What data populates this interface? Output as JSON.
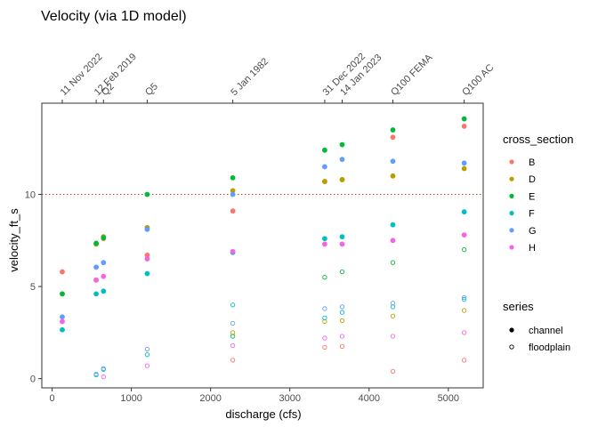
{
  "chart_data": {
    "type": "scatter",
    "title": "Velocity (via 1D model)",
    "xlabel": "discharge (cfs)",
    "ylabel": "velocity_ft_s",
    "xlim": [
      -130,
      5440
    ],
    "ylim": [
      -0.5,
      14.95
    ],
    "x_ticks": [
      0,
      1000,
      2000,
      3000,
      4000,
      5000
    ],
    "y_ticks": [
      0,
      5,
      10
    ],
    "reference_line": {
      "y": 10,
      "color": "#a0522d",
      "style": "dotted"
    },
    "top_ticks": [
      {
        "x": 128,
        "label": "11 Nov 2022"
      },
      {
        "x": 556,
        "label": "12 Feb 2019"
      },
      {
        "x": 648,
        "label": "Q2"
      },
      {
        "x": 1200,
        "label": "Q5"
      },
      {
        "x": 2280,
        "label": "5 Jan 1982"
      },
      {
        "x": 3440,
        "label": "31 Dec 2022"
      },
      {
        "x": 3660,
        "label": "14 Jan 2023"
      },
      {
        "x": 4300,
        "label": "Q100 FEMA"
      },
      {
        "x": 5200,
        "label": "Q100 AC"
      }
    ],
    "legend": {
      "cross_section": {
        "title": "cross_section",
        "items": [
          {
            "label": "B",
            "color": "#F8766D"
          },
          {
            "label": "D",
            "color": "#B79F00"
          },
          {
            "label": "E",
            "color": "#00BA38"
          },
          {
            "label": "F",
            "color": "#00BFC4"
          },
          {
            "label": "G",
            "color": "#619CFF"
          },
          {
            "label": "H",
            "color": "#F564E3"
          }
        ]
      },
      "series": {
        "title": "series",
        "items": [
          {
            "label": "channel",
            "shape": "filled"
          },
          {
            "label": "floodplain",
            "shape": "open"
          }
        ]
      }
    },
    "series": [
      {
        "cross_section": "B",
        "kind": "channel",
        "points": [
          [
            128,
            5.8
          ],
          [
            556,
            5.35
          ],
          [
            648,
            7.6
          ],
          [
            1200,
            6.7
          ],
          [
            2280,
            9.1
          ],
          [
            3440,
            10.7
          ],
          [
            3660,
            10.8
          ],
          [
            4300,
            13.1
          ],
          [
            5200,
            13.7
          ]
        ]
      },
      {
        "cross_section": "D",
        "kind": "channel",
        "points": [
          [
            128,
            4.6
          ],
          [
            556,
            7.3
          ],
          [
            648,
            7.7
          ],
          [
            1200,
            8.2
          ],
          [
            2280,
            10.2
          ],
          [
            3440,
            10.7
          ],
          [
            3660,
            10.8
          ],
          [
            4300,
            11.0
          ],
          [
            5200,
            11.4
          ]
        ]
      },
      {
        "cross_section": "E",
        "kind": "channel",
        "points": [
          [
            128,
            4.6
          ],
          [
            556,
            7.35
          ],
          [
            648,
            7.65
          ],
          [
            1200,
            10.0
          ],
          [
            2280,
            10.9
          ],
          [
            3440,
            12.4
          ],
          [
            3660,
            12.7
          ],
          [
            4300,
            13.5
          ],
          [
            5200,
            14.1
          ]
        ]
      },
      {
        "cross_section": "F",
        "kind": "channel",
        "points": [
          [
            128,
            2.65
          ],
          [
            556,
            4.6
          ],
          [
            648,
            4.75
          ],
          [
            1200,
            5.7
          ],
          [
            2280,
            6.85
          ],
          [
            3440,
            7.6
          ],
          [
            3660,
            7.7
          ],
          [
            4300,
            8.35
          ],
          [
            5200,
            9.05
          ]
        ]
      },
      {
        "cross_section": "G",
        "kind": "channel",
        "points": [
          [
            128,
            3.35
          ],
          [
            556,
            6.05
          ],
          [
            648,
            6.3
          ],
          [
            1200,
            8.1
          ],
          [
            2280,
            10.0
          ],
          [
            3440,
            11.5
          ],
          [
            3660,
            11.9
          ],
          [
            4300,
            11.8
          ],
          [
            5200,
            11.7
          ]
        ]
      },
      {
        "cross_section": "H",
        "kind": "channel",
        "points": [
          [
            128,
            3.1
          ],
          [
            556,
            5.35
          ],
          [
            648,
            5.55
          ],
          [
            1200,
            6.5
          ],
          [
            2280,
            6.9
          ],
          [
            3440,
            7.3
          ],
          [
            3660,
            7.3
          ],
          [
            4300,
            7.5
          ],
          [
            5200,
            7.8
          ]
        ]
      },
      {
        "cross_section": "B",
        "kind": "floodplain",
        "points": [
          [
            2280,
            1.0
          ],
          [
            3440,
            1.7
          ],
          [
            3660,
            1.75
          ],
          [
            4300,
            0.4
          ],
          [
            5200,
            1.0
          ]
        ]
      },
      {
        "cross_section": "D",
        "kind": "floodplain",
        "points": [
          [
            2280,
            2.5
          ],
          [
            3440,
            3.1
          ],
          [
            3660,
            3.15
          ],
          [
            4300,
            3.4
          ],
          [
            5200,
            3.7
          ]
        ]
      },
      {
        "cross_section": "E",
        "kind": "floodplain",
        "points": [
          [
            2280,
            2.3
          ],
          [
            3440,
            5.5
          ],
          [
            3660,
            5.8
          ],
          [
            4300,
            6.3
          ],
          [
            5200,
            7.0
          ]
        ]
      },
      {
        "cross_section": "F",
        "kind": "floodplain",
        "points": [
          [
            556,
            0.2
          ],
          [
            648,
            0.5
          ],
          [
            1200,
            1.3
          ],
          [
            2280,
            4.0
          ],
          [
            3440,
            3.3
          ],
          [
            3660,
            3.6
          ],
          [
            4300,
            3.9
          ],
          [
            5200,
            4.3
          ]
        ]
      },
      {
        "cross_section": "G",
        "kind": "floodplain",
        "points": [
          [
            556,
            0.25
          ],
          [
            648,
            0.55
          ],
          [
            1200,
            1.6
          ],
          [
            2280,
            3.0
          ],
          [
            3440,
            3.8
          ],
          [
            3660,
            3.9
          ],
          [
            4300,
            4.1
          ],
          [
            5200,
            4.4
          ]
        ]
      },
      {
        "cross_section": "H",
        "kind": "floodplain",
        "points": [
          [
            648,
            0.1
          ],
          [
            1200,
            0.7
          ],
          [
            2280,
            1.8
          ],
          [
            3440,
            2.2
          ],
          [
            3660,
            2.3
          ],
          [
            4300,
            2.3
          ],
          [
            5200,
            2.5
          ]
        ]
      }
    ]
  }
}
